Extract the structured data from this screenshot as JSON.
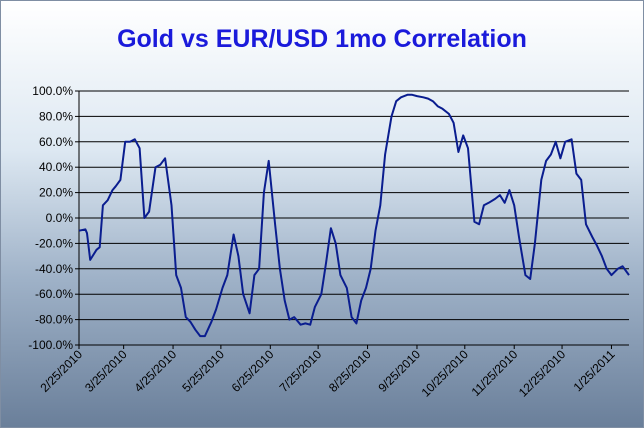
{
  "chart_data": {
    "type": "line",
    "title": "Gold vs EUR/USD 1mo Correlation",
    "xlabel": "",
    "ylabel": "",
    "ylim": [
      -100,
      100
    ],
    "yticks": [
      100,
      80,
      60,
      40,
      20,
      0,
      -20,
      -40,
      -60,
      -80,
      -100
    ],
    "ytick_labels": [
      "100.0%",
      "80.0%",
      "60.0%",
      "40.0%",
      "20.0%",
      "0.0%",
      "-20.0%",
      "-40.0%",
      "-60.0%",
      "-80.0%",
      "-100.0%"
    ],
    "xlim": [
      "2010-02-25",
      "2011-02-05"
    ],
    "xticks": [
      "2010-02-25",
      "2010-03-25",
      "2010-04-25",
      "2010-05-25",
      "2010-06-25",
      "2010-07-25",
      "2010-08-25",
      "2010-09-25",
      "2010-10-25",
      "2010-11-25",
      "2010-12-25",
      "2011-01-25"
    ],
    "xtick_labels": [
      "2/25/2010",
      "3/25/2010",
      "4/25/2010",
      "5/25/2010",
      "6/25/2010",
      "7/25/2010",
      "8/25/2010",
      "9/25/2010",
      "10/25/2010",
      "11/25/2010",
      "12/25/2010",
      "1/25/2011"
    ],
    "grid": "horizontal",
    "legend": "none",
    "colors": {
      "line": "#0a1d8f",
      "title": "#1a1adb",
      "gridline": "#000000"
    },
    "series": [
      {
        "x": [
          "2010-02-25",
          "2010-03-01",
          "2010-03-02",
          "2010-03-04",
          "2010-03-08",
          "2010-03-10",
          "2010-03-12",
          "2010-03-15",
          "2010-03-18",
          "2010-03-20",
          "2010-03-23",
          "2010-03-26",
          "2010-03-29",
          "2010-04-01",
          "2010-04-04",
          "2010-04-07",
          "2010-04-10",
          "2010-04-14",
          "2010-04-17",
          "2010-04-20",
          "2010-04-24",
          "2010-04-27",
          "2010-04-30",
          "2010-05-03",
          "2010-05-06",
          "2010-05-09",
          "2010-05-12",
          "2010-05-15",
          "2010-05-19",
          "2010-05-22",
          "2010-05-26",
          "2010-05-29",
          "2010-06-02",
          "2010-06-05",
          "2010-06-08",
          "2010-06-12",
          "2010-06-15",
          "2010-06-18",
          "2010-06-21",
          "2010-06-24",
          "2010-06-28",
          "2010-07-01",
          "2010-07-04",
          "2010-07-07",
          "2010-07-10",
          "2010-07-14",
          "2010-07-17",
          "2010-07-20",
          "2010-07-23",
          "2010-07-27",
          "2010-07-30",
          "2010-08-02",
          "2010-08-05",
          "2010-08-08",
          "2010-08-12",
          "2010-08-15",
          "2010-08-18",
          "2010-08-21",
          "2010-08-24",
          "2010-08-27",
          "2010-08-30",
          "2010-09-02",
          "2010-09-05",
          "2010-09-09",
          "2010-09-12",
          "2010-09-15",
          "2010-09-19",
          "2010-09-22",
          "2010-09-25",
          "2010-09-29",
          "2010-10-02",
          "2010-10-05",
          "2010-10-08",
          "2010-10-11",
          "2010-10-15",
          "2010-10-18",
          "2010-10-21",
          "2010-10-24",
          "2010-10-27",
          "2010-10-31",
          "2010-11-03",
          "2010-11-06",
          "2010-11-09",
          "2010-11-13",
          "2010-11-16",
          "2010-11-19",
          "2010-11-22",
          "2010-11-25",
          "2010-11-28",
          "2010-12-02",
          "2010-12-05",
          "2010-12-08",
          "2010-12-12",
          "2010-12-15",
          "2010-12-18",
          "2010-12-21",
          "2010-12-24",
          "2010-12-27",
          "2010-12-31",
          "2011-01-03",
          "2011-01-06",
          "2011-01-09",
          "2011-01-13",
          "2011-01-16",
          "2011-01-19",
          "2011-01-22",
          "2011-01-25",
          "2011-01-29",
          "2011-02-01",
          "2011-02-05"
        ],
        "y": [
          -10,
          -9,
          -12,
          -33,
          -25,
          -23,
          10,
          14,
          22,
          25,
          30,
          60,
          60,
          62,
          55,
          0,
          5,
          40,
          42,
          47,
          10,
          -45,
          -55,
          -78,
          -82,
          -88,
          -93,
          -93,
          -82,
          -72,
          -55,
          -45,
          -13,
          -30,
          -60,
          -75,
          -45,
          -40,
          20,
          45,
          -5,
          -40,
          -65,
          -80,
          -78,
          -84,
          -83,
          -84,
          -70,
          -60,
          -35,
          -8,
          -20,
          -45,
          -55,
          -78,
          -83,
          -65,
          -55,
          -40,
          -10,
          10,
          50,
          80,
          92,
          95,
          97,
          97,
          96,
          95,
          94,
          92,
          88,
          86,
          82,
          75,
          52,
          65,
          55,
          -3,
          -5,
          10,
          12,
          15,
          18,
          12,
          22,
          10,
          -15,
          -45,
          -48,
          -20,
          30,
          45,
          50,
          60,
          47,
          60,
          62,
          35,
          30,
          -5,
          -15,
          -22,
          -30,
          -40,
          -45,
          -40,
          -38,
          -45
        ]
      }
    ]
  }
}
